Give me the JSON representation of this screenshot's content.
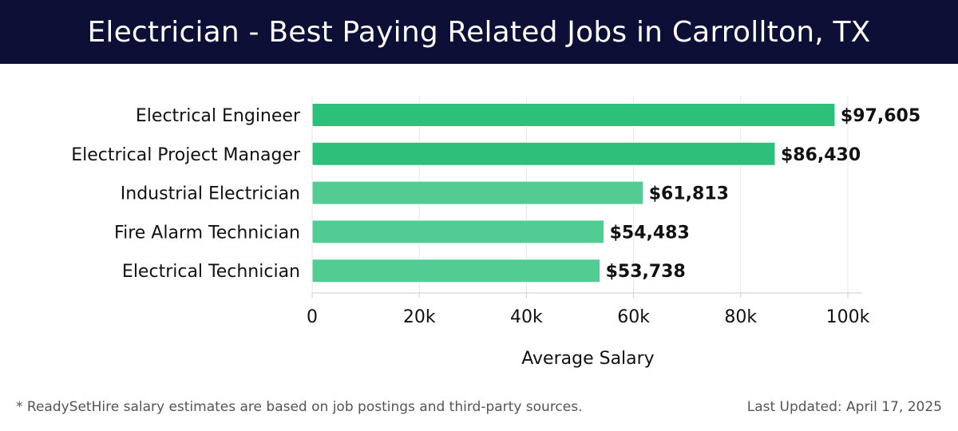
{
  "header": {
    "title": "Electrician - Best Paying Related Jobs in Carrollton, TX"
  },
  "chart_data": {
    "type": "bar",
    "orientation": "horizontal",
    "categories": [
      "Electrical Engineer",
      "Electrical Project Manager",
      "Industrial Electrician",
      "Fire Alarm Technician",
      "Electrical Technician"
    ],
    "values": [
      97605,
      86430,
      61813,
      54483,
      53738
    ],
    "value_labels": [
      "$97,605",
      "$86,430",
      "$61,813",
      "$54,483",
      "$53,738"
    ],
    "bar_colors": [
      "#2cc07a",
      "#2cc07a",
      "#52cc93",
      "#52cc93",
      "#52cc93"
    ],
    "xlabel": "Average Salary",
    "xlim": [
      0,
      100000
    ],
    "x_ticks": [
      0,
      20000,
      40000,
      60000,
      80000,
      100000
    ],
    "x_tick_labels": [
      "0",
      "20k",
      "40k",
      "60k",
      "80k",
      "100k"
    ],
    "grid": true
  },
  "footer": {
    "note": "* ReadySetHire salary estimates are based on job postings and third-party sources.",
    "updated": "Last Updated: April 17, 2025"
  }
}
